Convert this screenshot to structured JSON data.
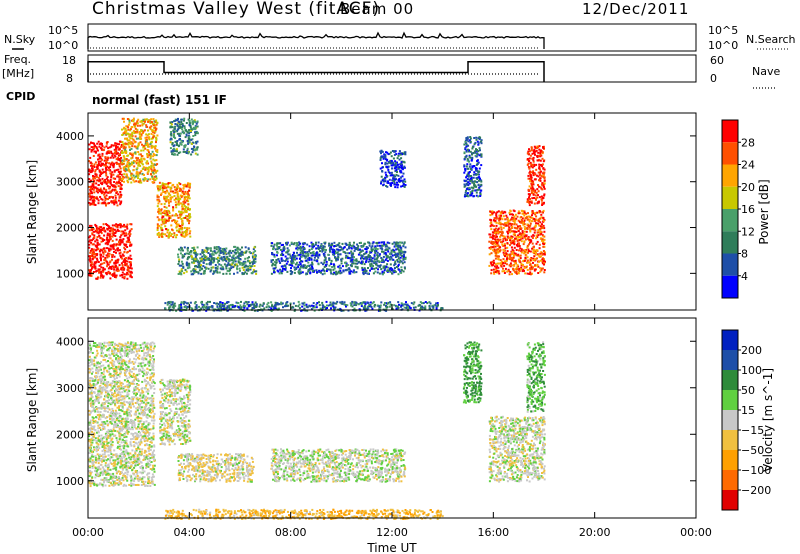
{
  "header": {
    "station": "Christmas Valley West (fitACF)",
    "beam": "Beam 00",
    "date": "12/Dec/2011"
  },
  "top_panels": {
    "nsky_label": "N.Sky",
    "nsky_ticks": [
      "10^5",
      "10^0"
    ],
    "nsky_right_ticks": [
      "10^5",
      "10^0"
    ],
    "nsearch_label": "N.Search",
    "freq_label": "Freq.",
    "freq_unit": "[MHz]",
    "freq_ticks": [
      "18",
      "8"
    ],
    "nave_ticks": [
      "60",
      "0"
    ],
    "nave_label": "Nave",
    "cpid_label": "CPID",
    "cpid_text": "normal (fast) 151 IF"
  },
  "colors": {
    "power_scale": [
      "#0000ff",
      "#1e4fa8",
      "#2f7d5a",
      "#4aa06a",
      "#c8c800",
      "#ffa500",
      "#ff5000",
      "#ff0000"
    ],
    "velocity_scale": [
      "#e00000",
      "#ff6a00",
      "#ffa000",
      "#f0c040",
      "#c8c8c8",
      "#60d040",
      "#2e8b3a",
      "#1e4fa8",
      "#0020c0"
    ]
  },
  "chart_data": [
    {
      "type": "heatmap",
      "title": "",
      "quantity": "Power",
      "xlabel": "",
      "ylabel": "Slant Range [km]",
      "x_range_hours": [
        0,
        24
      ],
      "ylim": [
        200,
        4500
      ],
      "yticks": [
        1000,
        2000,
        3000,
        4000
      ],
      "colorbar": {
        "label": "Power [dB]",
        "ticks": [
          "28",
          "24",
          "20",
          "16",
          "12",
          "8",
          "4"
        ],
        "range": [
          0,
          30
        ]
      },
      "regions": [
        {
          "t": [
            0.0,
            1.7
          ],
          "r": [
            900,
            2100
          ],
          "level": 29
        },
        {
          "t": [
            0.0,
            1.3
          ],
          "r": [
            2500,
            3900
          ],
          "level": 29
        },
        {
          "t": [
            1.3,
            2.7
          ],
          "r": [
            3000,
            4400
          ],
          "level": 20
        },
        {
          "t": [
            2.7,
            4.0
          ],
          "r": [
            1800,
            3000
          ],
          "level": 21
        },
        {
          "t": [
            3.2,
            4.3
          ],
          "r": [
            3600,
            4400
          ],
          "level": 10
        },
        {
          "t": [
            3.5,
            6.6
          ],
          "r": [
            1000,
            1600
          ],
          "level": 10
        },
        {
          "t": [
            7.2,
            12.5
          ],
          "r": [
            1000,
            1700
          ],
          "level": 7
        },
        {
          "t": [
            3.0,
            14.0
          ],
          "r": [
            200,
            400
          ],
          "level": 8
        },
        {
          "t": [
            11.5,
            12.5
          ],
          "r": [
            2900,
            3700
          ],
          "level": 4
        },
        {
          "t": [
            14.8,
            15.5
          ],
          "r": [
            2700,
            4000
          ],
          "level": 6
        },
        {
          "t": [
            15.8,
            18.0
          ],
          "r": [
            1000,
            2400
          ],
          "level": 25
        },
        {
          "t": [
            17.3,
            18.0
          ],
          "r": [
            2500,
            3800
          ],
          "level": 28
        }
      ]
    },
    {
      "type": "heatmap",
      "title": "",
      "quantity": "Velocity",
      "xlabel": "Time UT",
      "ylabel": "Slant Range [km]",
      "x_range_hours": [
        0,
        24
      ],
      "xticks": [
        "00:00",
        "04:00",
        "08:00",
        "12:00",
        "16:00",
        "20:00",
        "00:00"
      ],
      "ylim": [
        200,
        4500
      ],
      "yticks": [
        1000,
        2000,
        3000,
        4000
      ],
      "colorbar": {
        "label": "Velocity [m s^-1]",
        "ticks": [
          "200",
          "100",
          "50",
          "15",
          "−15",
          "−50",
          "−100",
          "−200"
        ],
        "range": [
          -250,
          250
        ]
      },
      "regions": [
        {
          "t": [
            0.0,
            2.6
          ],
          "r": [
            900,
            4000
          ],
          "level": 0
        },
        {
          "t": [
            2.8,
            4.0
          ],
          "r": [
            1800,
            3200
          ],
          "level": 0
        },
        {
          "t": [
            3.5,
            6.5
          ],
          "r": [
            1000,
            1600
          ],
          "level": -10
        },
        {
          "t": [
            7.2,
            12.5
          ],
          "r": [
            1000,
            1700
          ],
          "level": 5
        },
        {
          "t": [
            3.0,
            14.0
          ],
          "r": [
            200,
            400
          ],
          "level": -40
        },
        {
          "t": [
            14.8,
            15.5
          ],
          "r": [
            2700,
            4000
          ],
          "level": 60
        },
        {
          "t": [
            15.8,
            18.0
          ],
          "r": [
            1000,
            2400
          ],
          "level": 0
        },
        {
          "t": [
            17.3,
            18.0
          ],
          "r": [
            2500,
            4000
          ],
          "level": 40
        }
      ]
    }
  ]
}
